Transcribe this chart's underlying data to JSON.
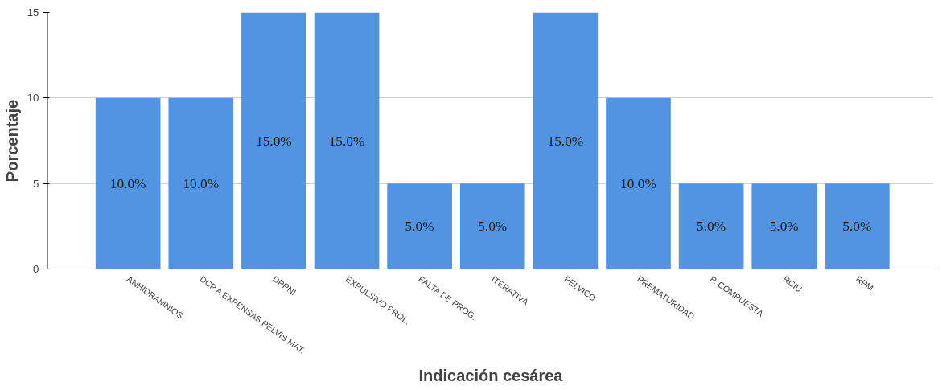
{
  "chart_data": {
    "type": "bar",
    "xlabel": "Indicación cesárea",
    "ylabel": "Porcentaje",
    "categories": [
      "ANHIDRAMNIOS",
      "DCP A EXPENSAS PELVIS MAT.",
      "DPPNI",
      "EXPULSIVO PROL.",
      "FALTA DE PROG.",
      "ITERATIVA",
      "PELVICO",
      "PREMATURIDAD",
      "P. COMPUESTA",
      "RCIU",
      "RPM"
    ],
    "values": [
      10,
      10,
      15,
      15,
      5,
      5,
      15,
      10,
      5,
      5,
      5
    ],
    "value_labels": [
      "10.0%",
      "10.0%",
      "15.0%",
      "15.0%",
      "5.0%",
      "5.0%",
      "15.0%",
      "10.0%",
      "5.0%",
      "5.0%",
      "5.0%"
    ],
    "color": "#5294e2",
    "ylim": [
      0,
      15
    ],
    "yticks": [
      0,
      5,
      10,
      15
    ],
    "grid": "y"
  }
}
